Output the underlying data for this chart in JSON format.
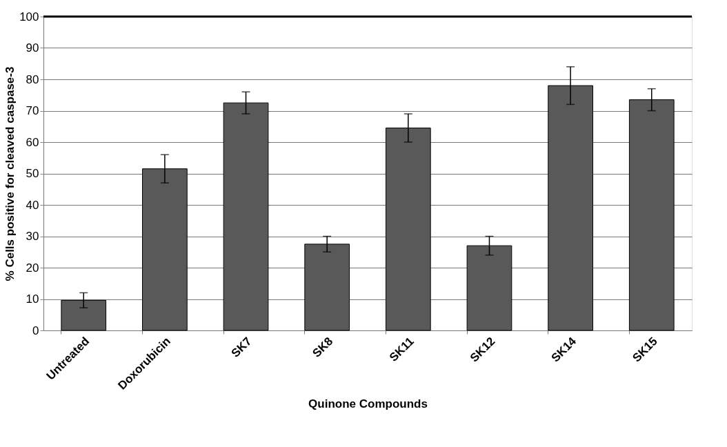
{
  "chart_data": {
    "type": "bar",
    "xlabel": "Quinone Compounds",
    "ylabel": "% Cells positive for cleaved caspase-3",
    "categories": [
      "Untreated",
      "Doxorubicin",
      "SK7",
      "SK8",
      "SK11",
      "SK12",
      "SK14",
      "SK15"
    ],
    "values": [
      9.6,
      51.5,
      72.5,
      27.5,
      64.5,
      27,
      78,
      73.5
    ],
    "errors": [
      2.4,
      4.5,
      3.5,
      2.5,
      4.5,
      3,
      6,
      3.5
    ],
    "color": "#595959",
    "ylim": [
      0,
      100
    ],
    "yticks": [
      0,
      10,
      20,
      30,
      40,
      50,
      60,
      70,
      80,
      90,
      100
    ],
    "grid": "y"
  }
}
